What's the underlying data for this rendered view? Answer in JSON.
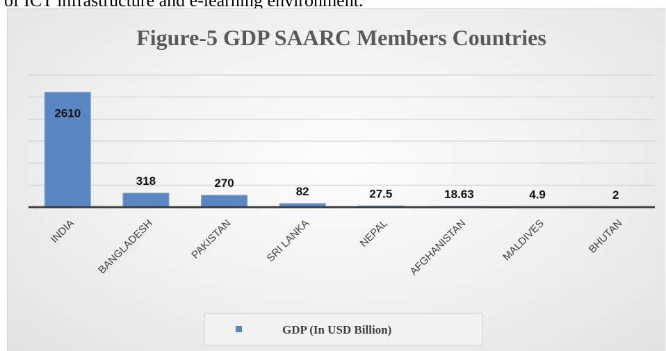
{
  "page": {
    "top_text": "of ICT infrastructure and e-learning environment."
  },
  "chart_data": {
    "type": "bar",
    "title": "Figure-5 GDP SAARC Members Countries",
    "categories": [
      "INDIA",
      "BANGLADESH",
      "PAKISTAN",
      "SRI LANKA",
      "NEPAL",
      "AFGHANISTAN",
      "MALDIVES",
      "BHUTAN"
    ],
    "series": [
      {
        "name": "GDP (In USD Billion)",
        "values": [
          2610,
          318,
          270,
          82,
          27.5,
          18.63,
          4.9,
          2
        ],
        "value_labels": [
          "2610",
          "318",
          "270",
          "82",
          "27.5",
          "18.63",
          "4.9",
          "2"
        ],
        "color": "#5b86c4"
      }
    ],
    "ylim": [
      0,
      3000
    ],
    "grid": true,
    "legend_position": "bottom",
    "axis_color": "#3f3f3f"
  }
}
